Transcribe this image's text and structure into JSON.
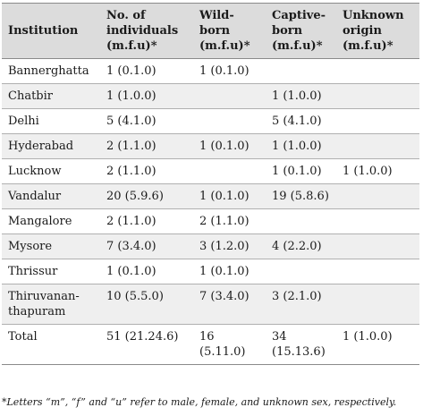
{
  "table": {
    "headers": [
      "Institution",
      "No. of individuals (m.f.u)*",
      "Wild-born (m.f.u)*",
      "Captive-born (m.f.u)*",
      "Unknown origin (m.f.u)*"
    ],
    "rows": [
      [
        "Bannerghatta",
        "1 (0.1.0)",
        "1 (0.1.0)",
        "",
        ""
      ],
      [
        "Chatbir",
        "1 (1.0.0)",
        "",
        "1 (1.0.0)",
        ""
      ],
      [
        "Delhi",
        "5 (4.1.0)",
        "",
        "5 (4.1.0)",
        ""
      ],
      [
        "Hyderabad",
        "2 (1.1.0)",
        "1 (0.1.0)",
        "1 (1.0.0)",
        ""
      ],
      [
        "Lucknow",
        "2 (1.1.0)",
        "",
        "1 (0.1.0)",
        "1 (1.0.0)"
      ],
      [
        "Vandalur",
        "20 (5.9.6)",
        "1 (0.1.0)",
        "19 (5.8.6)",
        ""
      ],
      [
        "Mangalore",
        "2 (1.1.0)",
        "2 (1.1.0)",
        "",
        ""
      ],
      [
        "Mysore",
        "7 (3.4.0)",
        "3 (1.2.0)",
        "4 (2.2.0)",
        ""
      ],
      [
        "Thrissur",
        "1 (0.1.0)",
        "1 (0.1.0)",
        "",
        ""
      ],
      [
        "Thiruvanan-thapuram",
        "10 (5.5.0)",
        "7 (3.4.0)",
        "3 (2.1.0)",
        ""
      ],
      [
        "Total",
        "51 (21.24.6)",
        "16 (5.11.0)",
        "34 (15.13.6)",
        "1 (1.0.0)"
      ]
    ]
  },
  "footnote": "*Letters “m”, “f” and “u” refer to male, female, and unknown sex, respectively."
}
